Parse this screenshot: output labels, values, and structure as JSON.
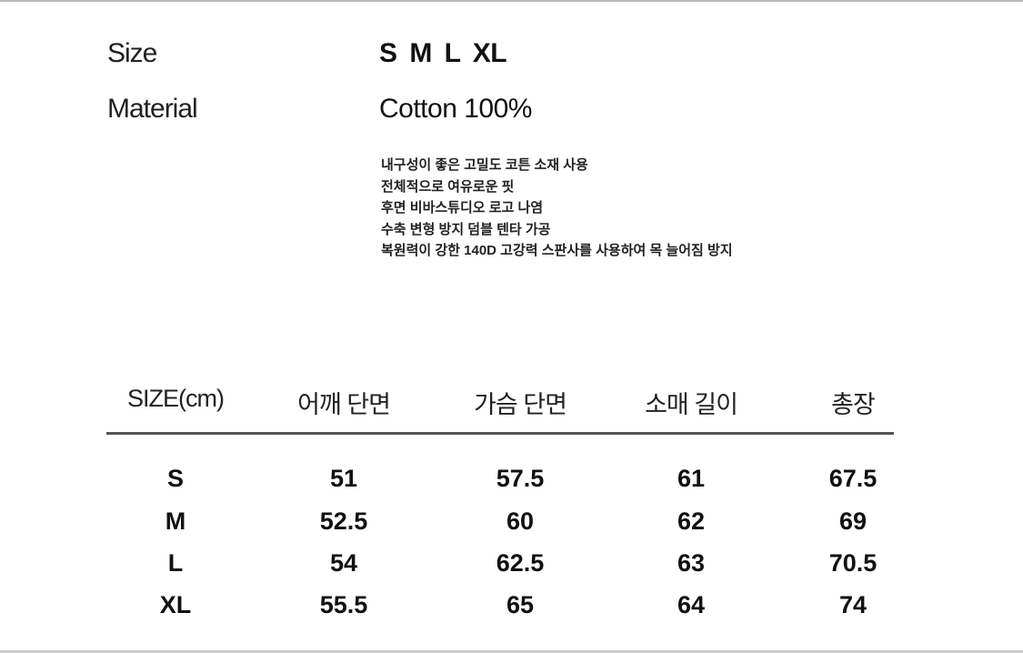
{
  "spec": {
    "size_label": "Size",
    "size_value": "S  M  L  XL",
    "material_label": "Material",
    "material_value": "Cotton 100%",
    "notes": [
      "내구성이 좋은 고밀도 코튼 소재 사용",
      "전체적으로 여유로운 핏",
      "후면 비바스튜디오 로고 나염",
      "수축 변형 방지 덤블 텐타 가공",
      "복원력이 강한 140D 고강력 스판사를 사용하여 목 늘어짐 방지"
    ]
  },
  "table": {
    "headers": [
      "SIZE(cm)",
      "어깨 단면",
      "가슴 단면",
      "소매 길이",
      "총장"
    ],
    "rows": [
      [
        "S",
        "51",
        "57.5",
        "61",
        "67.5"
      ],
      [
        "M",
        "52.5",
        "60",
        "62",
        "69"
      ],
      [
        "L",
        "54",
        "62.5",
        "63",
        "70.5"
      ],
      [
        "XL",
        "55.5",
        "65",
        "64",
        "74"
      ]
    ]
  }
}
